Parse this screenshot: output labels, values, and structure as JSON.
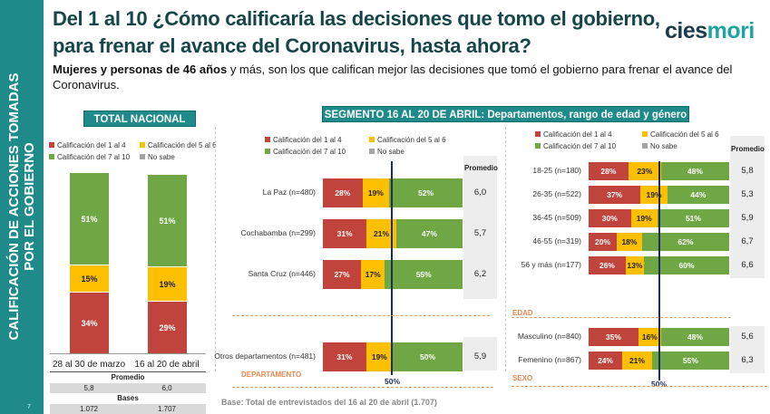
{
  "sidebar": {
    "line1": "CALIFICACIÓN DE ACCIONES TOMADAS",
    "line2": "POR EL GOBIERNO",
    "page": "7"
  },
  "header": {
    "title_line1": "Del 1 al 10 ¿Cómo calificaría las decisiones que tomo el gobierno,",
    "title_line2": "para frenar el avance del Coronavirus, hasta ahora?",
    "logo_a": "cies",
    "logo_b": "mori",
    "subtitle_bold": "Mujeres y personas de 46 años",
    "subtitle_rest": " y más, son los que califican mejor las decisiones que tomó el gobierno para frenar el avance del Coronavirus."
  },
  "colors": {
    "red": "#c0433c",
    "yellow": "#fcc000",
    "green": "#6fa744",
    "gray": "#a5a5a5",
    "teal": "#1f8a8a"
  },
  "legend": [
    "Calificación del 1 al 4",
    "Calificación del 5 al 6",
    "Calificación del 7 al 10",
    "No sabe"
  ],
  "chart_data": [
    {
      "type": "bar",
      "title": "TOTAL NACIONAL",
      "stacked": true,
      "categories": [
        "28 al 30 de marzo",
        "16 al 20 de abril"
      ],
      "series": [
        {
          "name": "Calificación del 1 al 4",
          "values": [
            34,
            29
          ]
        },
        {
          "name": "Calificación del 5 al 6",
          "values": [
            15,
            19
          ]
        },
        {
          "name": "Calificación del 7 al 10",
          "values": [
            51,
            51
          ]
        },
        {
          "name": "No sabe",
          "values": [
            0,
            0
          ]
        }
      ],
      "table": {
        "promedio_label": "Promedio",
        "promedio": [
          "5,8",
          "6,0"
        ],
        "bases_label": "Bases",
        "bases": [
          "1.072",
          "1.707"
        ]
      }
    },
    {
      "type": "bar",
      "orientation": "horizontal",
      "stacked": true,
      "title": "SEGMENTO 16 AL 20 DE ABRIL: Departamentos, rango de edad y género",
      "promedio_label": "Promedio",
      "reference_label": "50%",
      "groups": [
        {
          "label": "DEPARTAMENTO",
          "rows": [
            {
              "label": "La Paz (n=480)",
              "values": [
                28,
                19,
                52
              ],
              "promedio": "6,0"
            },
            {
              "label": "Cochabamba (n=299)",
              "values": [
                31,
                21,
                47
              ],
              "promedio": "5,7"
            },
            {
              "label": "Santa Cruz (n=446)",
              "values": [
                27,
                17,
                55
              ],
              "promedio": "6,2"
            },
            {
              "label": "Otros departamentos (n=481)",
              "values": [
                31,
                19,
                50
              ],
              "promedio": "5,9"
            }
          ]
        },
        {
          "label": "EDAD",
          "rows": [
            {
              "label": "18-25 (n=180)",
              "values": [
                28,
                23,
                48
              ],
              "promedio": "5,8"
            },
            {
              "label": "26-35 (n=522)",
              "values": [
                37,
                19,
                44
              ],
              "promedio": "5,3"
            },
            {
              "label": "36-45 (n=509)",
              "values": [
                30,
                19,
                51
              ],
              "promedio": "5,9"
            },
            {
              "label": "46-55 (n=319)",
              "values": [
                20,
                18,
                62
              ],
              "promedio": "6,7"
            },
            {
              "label": "56 y más (n=177)",
              "values": [
                26,
                13,
                60
              ],
              "promedio": "6,6"
            }
          ]
        },
        {
          "label": "SEXO",
          "rows": [
            {
              "label": "Masculino (n=840)",
              "values": [
                35,
                16,
                48
              ],
              "promedio": "5,6"
            },
            {
              "label": "Femenino (n=867)",
              "values": [
                24,
                21,
                55
              ],
              "promedio": "6,3"
            }
          ]
        }
      ],
      "footnote": "Base: Total de entrevistados del 16 al 20 de abril  (1.707)"
    }
  ]
}
